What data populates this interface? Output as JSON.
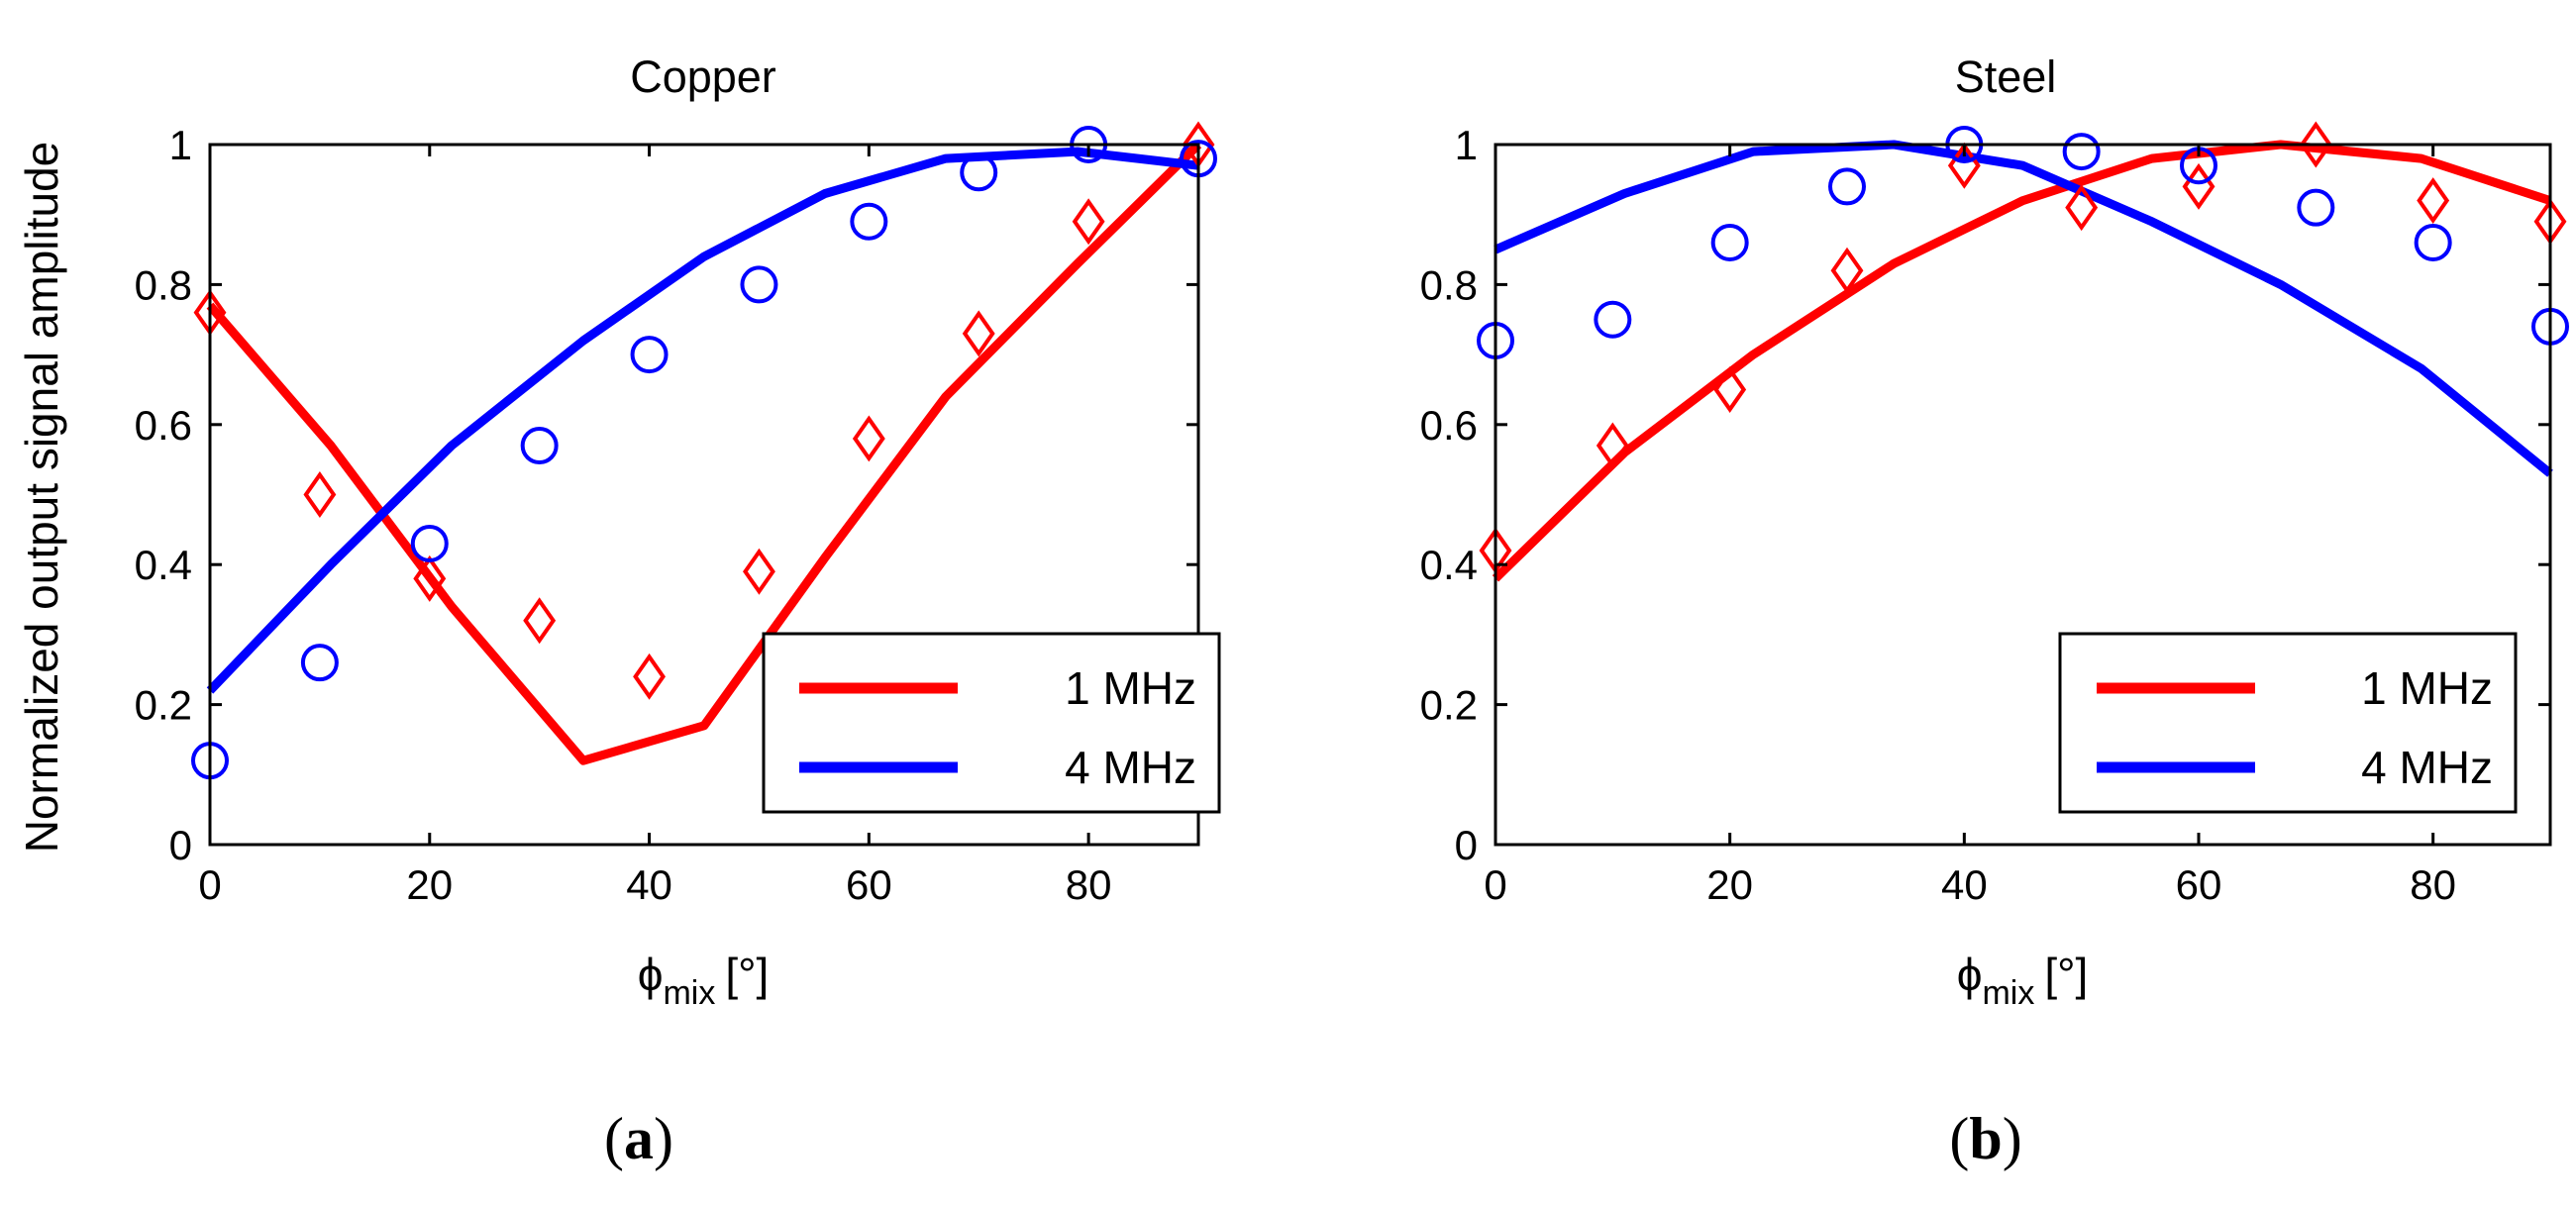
{
  "chart_data": [
    {
      "type": "line",
      "title": "Copper",
      "panel_label": "a",
      "ylabel": "Normalized output signal amplitude",
      "xlabel": {
        "base": "ϕ",
        "sub": "mix",
        "unit": "[°]"
      },
      "xlim": [
        0,
        90
      ],
      "ylim": [
        0,
        1
      ],
      "xticks": [
        0,
        20,
        40,
        60,
        80
      ],
      "yticks": [
        0,
        0.2,
        0.4,
        0.6,
        0.8,
        1
      ],
      "ytick_labels": [
        "0",
        "0.2",
        "0.4",
        "0.6",
        "0.8",
        "1"
      ],
      "legend_position": "bottom-right",
      "series": [
        {
          "name": "1 MHz",
          "color": "#ff0000",
          "line": {
            "x": [
              0,
              11,
              22,
              34,
              45,
              56,
              67,
              79,
              90
            ],
            "y": [
              0.77,
              0.57,
              0.34,
              0.12,
              0.17,
              0.41,
              0.64,
              0.83,
              1.0
            ]
          },
          "markers": {
            "shape": "diamond",
            "x": [
              0,
              10,
              20,
              30,
              40,
              50,
              60,
              70,
              80,
              90
            ],
            "y": [
              0.76,
              0.5,
              0.38,
              0.32,
              0.24,
              0.39,
              0.58,
              0.73,
              0.89,
              1.0
            ]
          }
        },
        {
          "name": "4 MHz",
          "color": "#0000ff",
          "line": {
            "x": [
              0,
              11,
              22,
              34,
              45,
              56,
              67,
              79,
              90
            ],
            "y": [
              0.22,
              0.4,
              0.57,
              0.72,
              0.84,
              0.93,
              0.98,
              0.99,
              0.97
            ]
          },
          "markers": {
            "shape": "circle",
            "x": [
              0,
              10,
              20,
              30,
              40,
              50,
              60,
              70,
              80,
              90
            ],
            "y": [
              0.12,
              0.26,
              0.43,
              0.57,
              0.7,
              0.8,
              0.89,
              0.96,
              1.0,
              0.98
            ]
          }
        }
      ]
    },
    {
      "type": "line",
      "title": "Steel",
      "panel_label": "b",
      "xlabel": {
        "base": "ϕ",
        "sub": "mix",
        "unit": "[°]"
      },
      "xlim": [
        0,
        90
      ],
      "ylim": [
        0,
        1
      ],
      "xticks": [
        0,
        20,
        40,
        60,
        80
      ],
      "yticks": [
        0,
        0.2,
        0.4,
        0.6,
        0.8,
        1
      ],
      "ytick_labels": [
        "0",
        "0.2",
        "0.4",
        "0.6",
        "0.8",
        "1"
      ],
      "legend_position": "bottom-right",
      "series": [
        {
          "name": "1 MHz",
          "color": "#ff0000",
          "line": {
            "x": [
              0,
              11,
              22,
              34,
              45,
              56,
              67,
              79,
              90
            ],
            "y": [
              0.38,
              0.56,
              0.7,
              0.83,
              0.92,
              0.98,
              1.0,
              0.98,
              0.92
            ]
          },
          "markers": {
            "shape": "diamond",
            "x": [
              0,
              10,
              20,
              30,
              40,
              50,
              60,
              70,
              80,
              90
            ],
            "y": [
              0.42,
              0.57,
              0.65,
              0.82,
              0.97,
              0.91,
              0.94,
              1.0,
              0.92,
              0.89
            ]
          }
        },
        {
          "name": "4 MHz",
          "color": "#0000ff",
          "line": {
            "x": [
              0,
              11,
              22,
              34,
              45,
              56,
              67,
              79,
              90
            ],
            "y": [
              0.85,
              0.93,
              0.99,
              1.0,
              0.97,
              0.89,
              0.8,
              0.68,
              0.53
            ]
          },
          "markers": {
            "shape": "circle",
            "x": [
              0,
              10,
              20,
              30,
              40,
              50,
              60,
              70,
              80,
              90
            ],
            "y": [
              0.72,
              0.75,
              0.86,
              0.94,
              1.0,
              0.99,
              0.97,
              0.91,
              0.86,
              0.74
            ]
          }
        }
      ]
    }
  ]
}
